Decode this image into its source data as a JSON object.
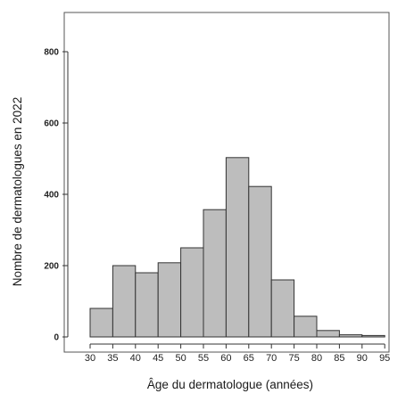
{
  "chart_data": {
    "type": "bar",
    "subtype": "histogram",
    "title": "",
    "xlabel": "Âge du dermatologue (années)",
    "ylabel": "Nombre de dermatologues en 2022",
    "bin_edges": [
      30,
      35,
      40,
      45,
      50,
      55,
      60,
      65,
      70,
      75,
      80,
      85,
      90,
      95
    ],
    "values": [
      80,
      200,
      180,
      208,
      250,
      357,
      503,
      422,
      160,
      58,
      18,
      6,
      4
    ],
    "xlim": [
      30,
      95
    ],
    "ylim": [
      0,
      900
    ],
    "x_ticks": [
      "30",
      "35",
      "40",
      "45",
      "50",
      "55",
      "60",
      "65",
      "70",
      "75",
      "80",
      "85",
      "90",
      "95"
    ],
    "y_ticks": [
      "0",
      "200",
      "400",
      "600",
      "800"
    ],
    "bar_color": "#bdbdbd",
    "bar_edge_color": "#333333",
    "background": "#ffffff",
    "grid": false,
    "legend": "none"
  }
}
